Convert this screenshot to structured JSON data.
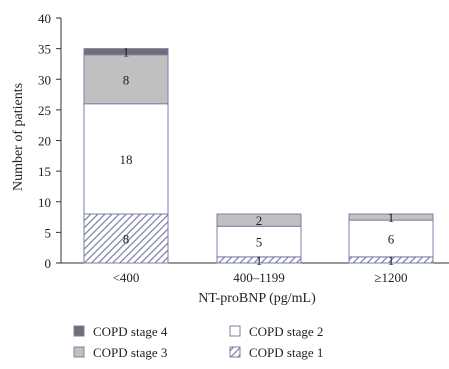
{
  "chart_data": {
    "type": "bar",
    "stacked": true,
    "categories": [
      "<400",
      "400–1199",
      "≥1200"
    ],
    "xlabel": "NT-proBNP (pg/mL)",
    "ylabel": "Number of patients",
    "ylim": [
      0,
      40
    ],
    "yticks": [
      0,
      5,
      10,
      15,
      20,
      25,
      30,
      35,
      40
    ],
    "grid": false,
    "legend_position": "bottom",
    "series": [
      {
        "name": "COPD stage 1",
        "values": [
          8,
          1,
          1
        ],
        "color": "#6b6f9a",
        "pattern": "hatch"
      },
      {
        "name": "COPD stage 2",
        "values": [
          18,
          5,
          6
        ],
        "color": "#ffffff",
        "pattern": "none"
      },
      {
        "name": "COPD stage 3",
        "values": [
          8,
          2,
          1
        ],
        "color": "#c0c0c0",
        "pattern": "none"
      },
      {
        "name": "COPD stage 4",
        "values": [
          1,
          0,
          0
        ],
        "color": "#6e6e74",
        "pattern": "none"
      }
    ],
    "legend_order": [
      "COPD stage 4",
      "COPD stage 2",
      "COPD stage 3",
      "COPD stage 1"
    ]
  }
}
